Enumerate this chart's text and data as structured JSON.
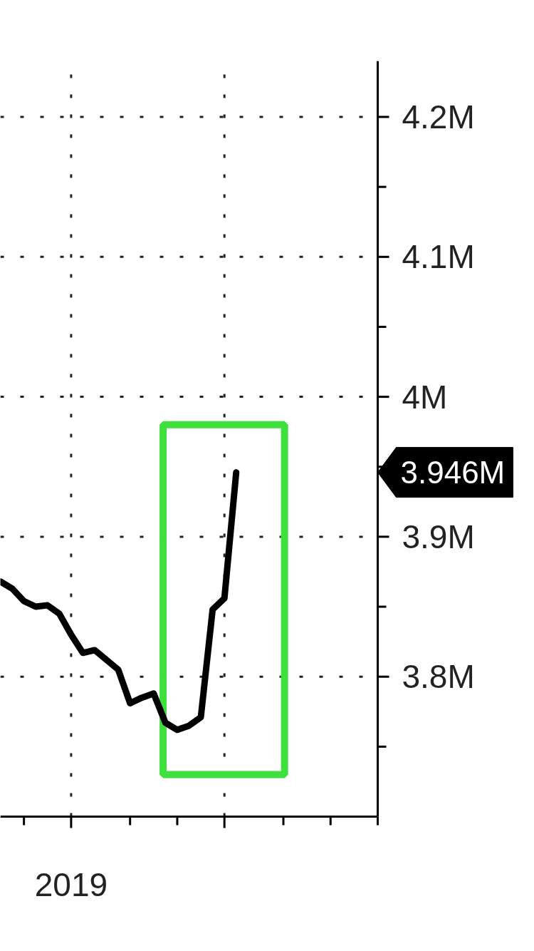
{
  "chart_data": {
    "type": "line",
    "categories": [
      null,
      null,
      null,
      null,
      null,
      null,
      "2019",
      null,
      null,
      null,
      null,
      null,
      null,
      null,
      null,
      null,
      null,
      null,
      null,
      null,
      null,
      null,
      null,
      null,
      null,
      null,
      null,
      null,
      null,
      null,
      null,
      null,
      null
    ],
    "series": [
      {
        "color": "#000000",
        "values": [
          3.868,
          3.863,
          3.854,
          3.85,
          3.851,
          3.845,
          3.83,
          3.817,
          3.819,
          3.812,
          3.805,
          3.781,
          3.785,
          3.788,
          3.767,
          3.762,
          3.765,
          3.771,
          3.848,
          3.856,
          3.946,
          null,
          null,
          null,
          null,
          null,
          null,
          null,
          null,
          null,
          null,
          null,
          null
        ]
      }
    ],
    "ylim": [
      3.7,
      4.24
    ],
    "yticks": [
      {
        "value": 3.8,
        "label": "3.8M"
      },
      {
        "value": 3.9,
        "label": "3.9M"
      },
      {
        "value": 4.0,
        "label": "4M"
      },
      {
        "value": 4.1,
        "label": "4.1M"
      },
      {
        "value": 4.2,
        "label": "4.2M"
      }
    ],
    "grid": true,
    "line_style": "solid",
    "annotations": [
      "3.946M"
    ]
  }
}
